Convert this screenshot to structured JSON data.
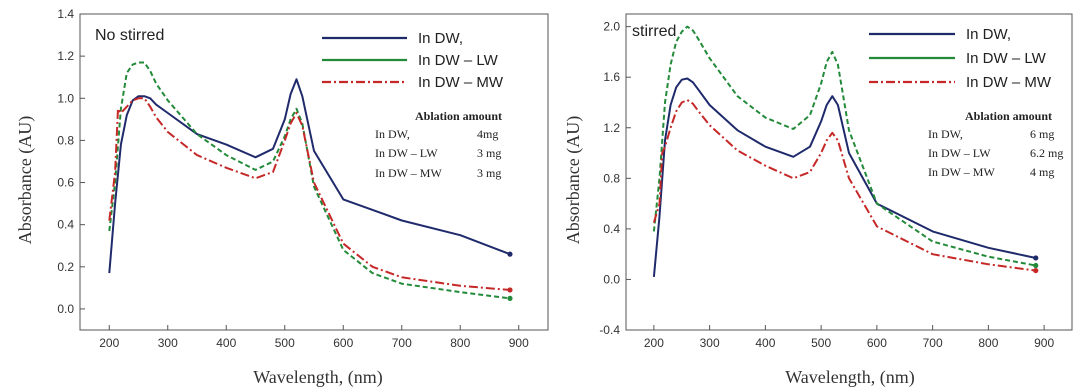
{
  "colors": {
    "In DW,": "#1f2a6b",
    "In DW – LW": "#238a3a",
    "In DW – MW": "#c62828"
  },
  "chart_data": [
    {
      "type": "line",
      "title": "No stirred",
      "xlabel": "Wavelength, (nm)",
      "ylabel": "Absorbance (AU)",
      "xlim": [
        150,
        950
      ],
      "ylim": [
        -0.1,
        1.4
      ],
      "xticks": [
        200,
        300,
        400,
        500,
        600,
        700,
        800,
        900
      ],
      "yticks": [
        0.0,
        0.2,
        0.4,
        0.6,
        0.8,
        1.0,
        1.2,
        1.4
      ],
      "xtick_labels": [
        "200",
        "300",
        "400",
        "500",
        "600",
        "700",
        "800",
        "900"
      ],
      "ytick_labels": [
        "0.0",
        "0.2",
        "0.4",
        "0.6",
        "0.8",
        "1.0",
        "1.2",
        "1.4"
      ],
      "legend_position": "top-right",
      "series": [
        {
          "name": "In DW,",
          "style": "solid",
          "x": [
            200,
            210,
            220,
            230,
            240,
            250,
            260,
            270,
            280,
            300,
            350,
            400,
            450,
            480,
            500,
            510,
            520,
            530,
            550,
            600,
            700,
            800,
            885
          ],
          "y": [
            0.17,
            0.5,
            0.78,
            0.92,
            0.99,
            1.01,
            1.01,
            1.0,
            0.97,
            0.93,
            0.83,
            0.78,
            0.72,
            0.76,
            0.9,
            1.02,
            1.09,
            1.01,
            0.75,
            0.52,
            0.42,
            0.35,
            0.26
          ]
        },
        {
          "name": "In DW – LW",
          "style": "dashed",
          "x": [
            200,
            210,
            220,
            230,
            240,
            250,
            260,
            270,
            280,
            300,
            350,
            400,
            450,
            480,
            500,
            510,
            520,
            530,
            550,
            600,
            650,
            700,
            800,
            885
          ],
          "y": [
            0.37,
            0.6,
            0.95,
            1.12,
            1.16,
            1.17,
            1.17,
            1.13,
            1.07,
            0.99,
            0.83,
            0.73,
            0.66,
            0.7,
            0.82,
            0.9,
            0.95,
            0.88,
            0.58,
            0.28,
            0.17,
            0.12,
            0.08,
            0.05
          ]
        },
        {
          "name": "In DW – MW",
          "style": "dashdot",
          "x": [
            200,
            210,
            215,
            220,
            230,
            240,
            250,
            260,
            270,
            280,
            300,
            350,
            400,
            450,
            480,
            500,
            510,
            520,
            530,
            550,
            600,
            650,
            700,
            800,
            885
          ],
          "y": [
            0.42,
            0.65,
            0.95,
            0.93,
            0.96,
            0.99,
            1.0,
            1.0,
            0.96,
            0.91,
            0.84,
            0.73,
            0.67,
            0.62,
            0.65,
            0.8,
            0.88,
            0.93,
            0.87,
            0.6,
            0.31,
            0.2,
            0.15,
            0.11,
            0.09
          ]
        }
      ],
      "legend_entries": [
        "In DW,",
        "In DW – LW",
        "In DW – MW"
      ],
      "annotation": {
        "title": "Ablation amount",
        "rows": [
          {
            "label": "In DW,",
            "value": "4mg"
          },
          {
            "label": "In DW – LW",
            "value": "3 mg"
          },
          {
            "label": "In DW – MW",
            "value": "3 mg"
          }
        ]
      }
    },
    {
      "type": "line",
      "title": "stirred",
      "xlabel": "Wavelength, (nm)",
      "ylabel": "Absorbance (AU)",
      "xlim": [
        150,
        950
      ],
      "ylim": [
        -0.4,
        2.1
      ],
      "xticks": [
        200,
        300,
        400,
        500,
        600,
        700,
        800,
        900
      ],
      "yticks": [
        -0.4,
        0.0,
        0.4,
        0.8,
        1.2,
        1.6,
        2.0
      ],
      "xtick_labels": [
        "200",
        "300",
        "400",
        "500",
        "600",
        "700",
        "800",
        "900"
      ],
      "ytick_labels": [
        "-0.4",
        "0.0",
        "0.4",
        "0.8",
        "1.2",
        "1.6",
        "2.0"
      ],
      "legend_position": "top-right",
      "series": [
        {
          "name": "In DW,",
          "style": "solid",
          "x": [
            200,
            210,
            220,
            230,
            240,
            250,
            260,
            270,
            280,
            300,
            350,
            400,
            450,
            480,
            500,
            510,
            520,
            530,
            550,
            600,
            700,
            800,
            885
          ],
          "y": [
            0.02,
            0.5,
            1.1,
            1.38,
            1.52,
            1.58,
            1.59,
            1.56,
            1.5,
            1.38,
            1.18,
            1.05,
            0.97,
            1.05,
            1.25,
            1.38,
            1.45,
            1.38,
            1.0,
            0.6,
            0.38,
            0.25,
            0.17
          ]
        },
        {
          "name": "In DW – LW",
          "style": "dashed",
          "x": [
            200,
            210,
            220,
            230,
            240,
            250,
            260,
            270,
            280,
            300,
            350,
            400,
            450,
            480,
            500,
            510,
            520,
            530,
            550,
            600,
            700,
            800,
            885
          ],
          "y": [
            0.38,
            0.8,
            1.4,
            1.7,
            1.88,
            1.96,
            2.0,
            1.97,
            1.9,
            1.75,
            1.45,
            1.28,
            1.19,
            1.3,
            1.55,
            1.72,
            1.8,
            1.7,
            1.18,
            0.6,
            0.3,
            0.18,
            0.11
          ]
        },
        {
          "name": "In DW – MW",
          "style": "dashdot",
          "x": [
            200,
            210,
            215,
            220,
            230,
            240,
            250,
            260,
            270,
            280,
            300,
            350,
            400,
            450,
            480,
            500,
            510,
            520,
            530,
            550,
            600,
            700,
            800,
            885
          ],
          "y": [
            0.45,
            0.6,
            1.0,
            1.05,
            1.2,
            1.33,
            1.4,
            1.42,
            1.39,
            1.33,
            1.22,
            1.02,
            0.9,
            0.8,
            0.85,
            1.0,
            1.1,
            1.16,
            1.1,
            0.8,
            0.42,
            0.2,
            0.12,
            0.07
          ]
        }
      ],
      "legend_entries": [
        "In DW,",
        "In DW – LW",
        "In DW – MW"
      ],
      "annotation": {
        "title": "Ablation amount",
        "rows": [
          {
            "label": "In DW,",
            "value": "6 mg"
          },
          {
            "label": "In DW – LW",
            "value": "6.2 mg"
          },
          {
            "label": "In DW – MW",
            "value": "4 mg"
          }
        ]
      }
    }
  ]
}
